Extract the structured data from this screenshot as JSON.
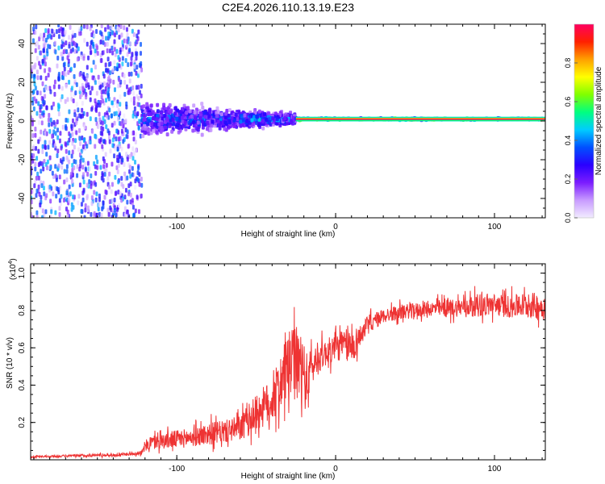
{
  "title": "C2E4.2026.110.13.19.E23",
  "colorbar": {
    "label": "Normalized spectral amplitude",
    "ticks": [
      "0.0",
      "0.2",
      "0.4",
      "0.6",
      "0.8"
    ],
    "tick_values": [
      0.0,
      0.2,
      0.4,
      0.6,
      0.8
    ],
    "range": [
      0,
      1
    ],
    "stops": [
      "#f2ecff",
      "#c89bff",
      "#7b1cff",
      "#2a00ff",
      "#0050ff",
      "#00ccff",
      "#00ff80",
      "#80ff00",
      "#ffff00",
      "#ffa000",
      "#ff2000",
      "#ff0060"
    ]
  },
  "chart_data": [
    {
      "type": "heatmap",
      "title": "C2E4.2026.110.13.19.E23",
      "xlabel": "Height of straight line (km)",
      "ylabel": "Frequency (Hz)",
      "xlim": [
        -192,
        132
      ],
      "ylim": [
        -50,
        50
      ],
      "x_ticks": [
        -100,
        0,
        100
      ],
      "y_ticks": [
        -40,
        -20,
        0,
        20,
        40
      ],
      "x_tick_labels": [
        "-100",
        "0",
        "100"
      ],
      "y_tick_labels": [
        "-40",
        "-20",
        "0",
        "20",
        "40"
      ],
      "description_regions": [
        {
          "x_range": [
            -192,
            -122
          ],
          "freq_spread": 50,
          "amplitude": 0.2
        },
        {
          "x_range": [
            -122,
            -60
          ],
          "freq_spread": 8,
          "amplitude": 0.35
        },
        {
          "x_range": [
            -60,
            -25
          ],
          "freq_spread": 4,
          "amplitude": 0.4
        },
        {
          "x_range": [
            -25,
            132
          ],
          "freq_spread": 0.5,
          "amplitude": 0.95
        }
      ]
    },
    {
      "type": "line",
      "xlabel": "Height of straight line (km)",
      "ylabel": "SNR (10 * v/v)",
      "y_multiplier": "(x10",
      "y_multiplier_exp": "4",
      "y_multiplier_close": ")",
      "xlim": [
        -192,
        132
      ],
      "ylim": [
        0,
        1.05
      ],
      "x_ticks": [
        -100,
        0,
        100
      ],
      "y_ticks": [
        0.2,
        0.4,
        0.6,
        0.8,
        1.0
      ],
      "x_tick_labels": [
        "-100",
        "0",
        "100"
      ],
      "y_tick_labels": [
        "0.2",
        "0.4",
        "0.6",
        "0.8",
        "1.0"
      ],
      "color": "#ee3333",
      "series": [
        {
          "name": "SNR",
          "x": [
            -192,
            -170,
            -150,
            -140,
            -130,
            -122,
            -118,
            -110,
            -100,
            -90,
            -80,
            -70,
            -60,
            -50,
            -40,
            -35,
            -30,
            -25,
            -22,
            -20,
            -18,
            -15,
            -10,
            -5,
            0,
            5,
            10,
            15,
            20,
            30,
            40,
            50,
            60,
            70,
            80,
            90,
            100,
            110,
            120,
            132
          ],
          "values": [
            0.015,
            0.02,
            0.025,
            0.025,
            0.03,
            0.04,
            0.09,
            0.1,
            0.11,
            0.12,
            0.14,
            0.15,
            0.17,
            0.25,
            0.32,
            0.4,
            0.5,
            0.52,
            0.48,
            0.45,
            0.42,
            0.5,
            0.55,
            0.58,
            0.6,
            0.62,
            0.6,
            0.66,
            0.72,
            0.77,
            0.79,
            0.8,
            0.81,
            0.81,
            0.82,
            0.83,
            0.83,
            0.82,
            0.83,
            0.82
          ],
          "noise_amplitude": [
            0.005,
            0.006,
            0.008,
            0.008,
            0.008,
            0.012,
            0.04,
            0.04,
            0.05,
            0.05,
            0.06,
            0.06,
            0.07,
            0.1,
            0.12,
            0.15,
            0.18,
            0.2,
            0.2,
            0.18,
            0.15,
            0.1,
            0.08,
            0.07,
            0.08,
            0.08,
            0.1,
            0.06,
            0.05,
            0.04,
            0.04,
            0.04,
            0.04,
            0.05,
            0.05,
            0.06,
            0.06,
            0.06,
            0.07,
            0.07
          ]
        }
      ]
    }
  ]
}
